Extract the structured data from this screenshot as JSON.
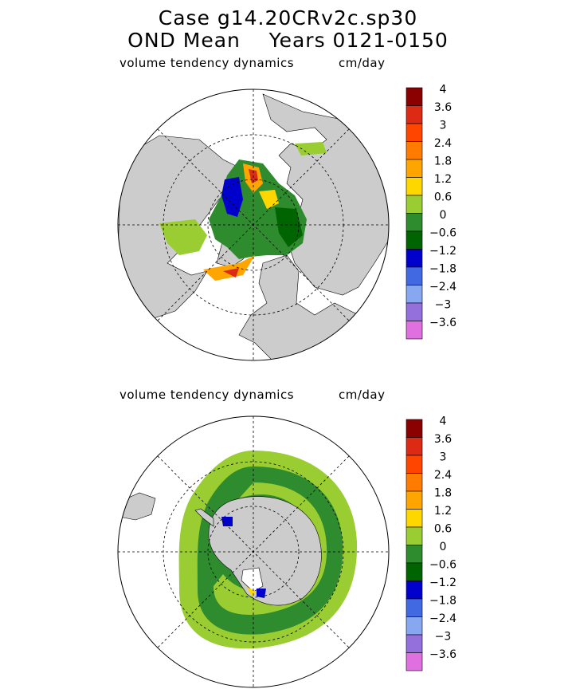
{
  "title": {
    "line1": "Case g14.20CRv2c.sp30",
    "line2": "OND Mean    Years 0121-0150"
  },
  "panels": [
    {
      "id": "north",
      "hemisphere": "Northern Hemisphere",
      "variable_label": "volume tendency dynamics",
      "units_label": "cm/day"
    },
    {
      "id": "south",
      "hemisphere": "Southern Hemisphere",
      "variable_label": "volume tendency dynamics",
      "units_label": "cm/day"
    }
  ],
  "colorbar": {
    "colors": [
      "#8b0000",
      "#dc2a14",
      "#ff4500",
      "#ff7c00",
      "#ffa500",
      "#ffd700",
      "#9acd32",
      "#2e8b2e",
      "#006400",
      "#0000cd",
      "#4169e1",
      "#87a8f0",
      "#9370db",
      "#e070e0"
    ],
    "tick_labels": [
      "4",
      "3.6",
      "3",
      "2.4",
      "1.8",
      "1.2",
      "0.6",
      "0",
      "-0.6",
      "-1.2",
      "-1.8",
      "-2.4",
      "-3",
      "-3.6"
    ]
  },
  "map_colors": {
    "land": "#cccccc",
    "ocean": "#ffffff",
    "grid": "#000000"
  }
}
